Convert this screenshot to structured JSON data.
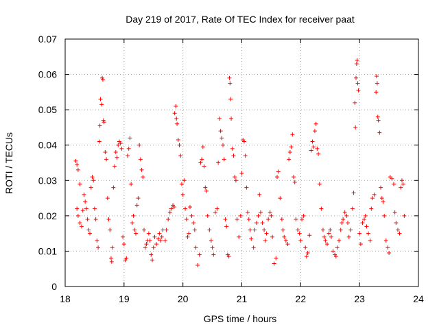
{
  "chart_data": {
    "type": "scatter",
    "title": "Day 219 of 2017, Rate Of TEC Index for receiver paat",
    "xlabel": "GPS time / hours",
    "ylabel": "ROTI / TECUs",
    "xlim": [
      18,
      24
    ],
    "ylim": [
      0,
      0.07
    ],
    "xticks": [
      "18",
      "19",
      "20",
      "21",
      "22",
      "23",
      "24"
    ],
    "yticks": [
      "0",
      "0.01",
      "0.02",
      "0.03",
      "0.04",
      "0.05",
      "0.06",
      "0.07"
    ],
    "grid": true,
    "marker": "+",
    "marker_color": "#ff0000",
    "series": [
      {
        "name": "ROTI",
        "color": "#ff0000",
        "points": [
          [
            18.18,
            0.0355
          ],
          [
            18.2,
            0.0345
          ],
          [
            18.22,
            0.033
          ],
          [
            18.25,
            0.029
          ],
          [
            18.2,
            0.022
          ],
          [
            18.22,
            0.02
          ],
          [
            18.25,
            0.018
          ],
          [
            18.28,
            0.017
          ],
          [
            18.3,
            0.0215
          ],
          [
            18.32,
            0.026
          ],
          [
            18.34,
            0.024
          ],
          [
            18.36,
            0.022
          ],
          [
            18.38,
            0.019
          ],
          [
            18.4,
            0.016
          ],
          [
            18.42,
            0.015
          ],
          [
            18.44,
            0.028
          ],
          [
            18.46,
            0.031
          ],
          [
            18.48,
            0.03
          ],
          [
            18.5,
            0.022
          ],
          [
            18.52,
            0.019
          ],
          [
            18.54,
            0.013
          ],
          [
            18.56,
            0.011
          ],
          [
            18.58,
            0.041
          ],
          [
            18.59,
            0.0455
          ],
          [
            18.6,
            0.053
          ],
          [
            18.62,
            0.0515
          ],
          [
            18.63,
            0.059
          ],
          [
            18.64,
            0.0585
          ],
          [
            18.65,
            0.047
          ],
          [
            18.66,
            0.0465
          ],
          [
            18.68,
            0.038
          ],
          [
            18.7,
            0.036
          ],
          [
            18.72,
            0.025
          ],
          [
            18.74,
            0.019
          ],
          [
            18.76,
            0.016
          ],
          [
            18.78,
            0.008
          ],
          [
            18.79,
            0.007
          ],
          [
            18.8,
            0.011
          ],
          [
            18.82,
            0.028
          ],
          [
            18.84,
            0.034
          ],
          [
            18.86,
            0.038
          ],
          [
            18.88,
            0.0365
          ],
          [
            18.9,
            0.04
          ],
          [
            18.92,
            0.041
          ],
          [
            18.94,
            0.0405
          ],
          [
            18.96,
            0.039
          ],
          [
            18.98,
            0.014
          ],
          [
            19.0,
            0.012
          ],
          [
            19.02,
            0.0075
          ],
          [
            19.04,
            0.008
          ],
          [
            19.06,
            0.037
          ],
          [
            19.08,
            0.039
          ],
          [
            19.1,
            0.042
          ],
          [
            19.12,
            0.029
          ],
          [
            19.14,
            0.018
          ],
          [
            19.16,
            0.02
          ],
          [
            19.18,
            0.016
          ],
          [
            19.2,
            0.015
          ],
          [
            19.22,
            0.023
          ],
          [
            19.24,
            0.025
          ],
          [
            19.26,
            0.04
          ],
          [
            19.28,
            0.036
          ],
          [
            19.3,
            0.033
          ],
          [
            19.32,
            0.031
          ],
          [
            19.34,
            0.016
          ],
          [
            19.36,
            0.011
          ],
          [
            19.38,
            0.012
          ],
          [
            19.4,
            0.013
          ],
          [
            19.42,
            0.015
          ],
          [
            19.44,
            0.013
          ],
          [
            19.46,
            0.009
          ],
          [
            19.48,
            0.0075
          ],
          [
            19.5,
            0.011
          ],
          [
            19.52,
            0.014
          ],
          [
            19.55,
            0.012
          ],
          [
            19.58,
            0.0135
          ],
          [
            19.6,
            0.015
          ],
          [
            19.62,
            0.013
          ],
          [
            19.64,
            0.014
          ],
          [
            19.66,
            0.016
          ],
          [
            19.7,
            0.013
          ],
          [
            19.72,
            0.016
          ],
          [
            19.75,
            0.019
          ],
          [
            19.78,
            0.021
          ],
          [
            19.8,
            0.022
          ],
          [
            19.83,
            0.023
          ],
          [
            19.85,
            0.0225
          ],
          [
            19.86,
            0.049
          ],
          [
            19.88,
            0.051
          ],
          [
            19.89,
            0.0475
          ],
          [
            19.9,
            0.046
          ],
          [
            19.92,
            0.0415
          ],
          [
            19.94,
            0.04
          ],
          [
            19.96,
            0.037
          ],
          [
            19.98,
            0.029
          ],
          [
            20.0,
            0.026
          ],
          [
            20.02,
            0.03
          ],
          [
            20.04,
            0.022
          ],
          [
            20.06,
            0.019
          ],
          [
            20.08,
            0.014
          ],
          [
            20.1,
            0.015
          ],
          [
            20.12,
            0.0225
          ],
          [
            20.15,
            0.02
          ],
          [
            20.18,
            0.018
          ],
          [
            20.2,
            0.016
          ],
          [
            20.22,
            0.011
          ],
          [
            20.25,
            0.006
          ],
          [
            20.28,
            0.009
          ],
          [
            20.3,
            0.035
          ],
          [
            20.32,
            0.036
          ],
          [
            20.34,
            0.0395
          ],
          [
            20.36,
            0.034
          ],
          [
            20.38,
            0.028
          ],
          [
            20.4,
            0.027
          ],
          [
            20.42,
            0.02
          ],
          [
            20.45,
            0.016
          ],
          [
            20.48,
            0.013
          ],
          [
            20.5,
            0.011
          ],
          [
            20.52,
            0.009
          ],
          [
            20.55,
            0.021
          ],
          [
            20.58,
            0.022
          ],
          [
            20.6,
            0.035
          ],
          [
            20.62,
            0.0475
          ],
          [
            20.64,
            0.044
          ],
          [
            20.66,
            0.042
          ],
          [
            20.68,
            0.04
          ],
          [
            20.7,
            0.036
          ],
          [
            20.72,
            0.019
          ],
          [
            20.74,
            0.017
          ],
          [
            20.76,
            0.009
          ],
          [
            20.78,
            0.0085
          ],
          [
            20.79,
            0.059
          ],
          [
            20.8,
            0.0575
          ],
          [
            20.81,
            0.053
          ],
          [
            20.82,
            0.0475
          ],
          [
            20.84,
            0.039
          ],
          [
            20.86,
            0.037
          ],
          [
            20.88,
            0.031
          ],
          [
            20.9,
            0.03
          ],
          [
            20.92,
            0.019
          ],
          [
            20.95,
            0.014
          ],
          [
            20.98,
            0.02
          ],
          [
            21.0,
            0.032
          ],
          [
            21.02,
            0.0415
          ],
          [
            21.04,
            0.041
          ],
          [
            21.06,
            0.037
          ],
          [
            21.08,
            0.028
          ],
          [
            21.1,
            0.021
          ],
          [
            21.12,
            0.019
          ],
          [
            21.14,
            0.016
          ],
          [
            21.16,
            0.0135
          ],
          [
            21.2,
            0.011
          ],
          [
            21.22,
            0.016
          ],
          [
            21.25,
            0.018
          ],
          [
            21.28,
            0.02
          ],
          [
            21.3,
            0.026
          ],
          [
            21.32,
            0.021
          ],
          [
            21.35,
            0.018
          ],
          [
            21.38,
            0.016
          ],
          [
            21.4,
            0.013
          ],
          [
            21.42,
            0.015
          ],
          [
            21.45,
            0.019
          ],
          [
            21.48,
            0.021
          ],
          [
            21.5,
            0.02
          ],
          [
            21.52,
            0.014
          ],
          [
            21.55,
            0.0065
          ],
          [
            21.58,
            0.008
          ],
          [
            21.6,
            0.031
          ],
          [
            21.62,
            0.0325
          ],
          [
            21.65,
            0.025
          ],
          [
            21.68,
            0.019
          ],
          [
            21.7,
            0.016
          ],
          [
            21.72,
            0.014
          ],
          [
            21.75,
            0.013
          ],
          [
            21.78,
            0.012
          ],
          [
            21.8,
            0.036
          ],
          [
            21.82,
            0.038
          ],
          [
            21.84,
            0.0395
          ],
          [
            21.86,
            0.043
          ],
          [
            21.88,
            0.031
          ],
          [
            21.9,
            0.0295
          ],
          [
            21.92,
            0.019
          ],
          [
            21.95,
            0.016
          ],
          [
            21.98,
            0.015
          ],
          [
            22.0,
            0.013
          ],
          [
            22.02,
            0.019
          ],
          [
            22.05,
            0.02
          ],
          [
            22.08,
            0.011
          ],
          [
            22.1,
            0.0085
          ],
          [
            22.12,
            0.0095
          ],
          [
            22.15,
            0.0145
          ],
          [
            22.18,
            0.0385
          ],
          [
            22.2,
            0.041
          ],
          [
            22.22,
            0.0395
          ],
          [
            22.24,
            0.044
          ],
          [
            22.26,
            0.046
          ],
          [
            22.28,
            0.039
          ],
          [
            22.3,
            0.0375
          ],
          [
            22.32,
            0.029
          ],
          [
            22.35,
            0.022
          ],
          [
            22.38,
            0.016
          ],
          [
            22.4,
            0.014
          ],
          [
            22.42,
            0.013
          ],
          [
            22.45,
            0.012
          ],
          [
            22.48,
            0.015
          ],
          [
            22.5,
            0.016
          ],
          [
            22.52,
            0.014
          ],
          [
            22.55,
            0.01
          ],
          [
            22.58,
            0.009
          ],
          [
            22.6,
            0.0085
          ],
          [
            22.62,
            0.011
          ],
          [
            22.65,
            0.013
          ],
          [
            22.68,
            0.016
          ],
          [
            22.7,
            0.018
          ],
          [
            22.72,
            0.019
          ],
          [
            22.75,
            0.021
          ],
          [
            22.78,
            0.02
          ],
          [
            22.8,
            0.018
          ],
          [
            22.82,
            0.014
          ],
          [
            22.85,
            0.016
          ],
          [
            22.88,
            0.022
          ],
          [
            22.9,
            0.0265
          ],
          [
            22.92,
            0.052
          ],
          [
            22.93,
            0.045
          ],
          [
            22.94,
            0.059
          ],
          [
            22.95,
            0.063
          ],
          [
            22.96,
            0.064
          ],
          [
            22.97,
            0.0575
          ],
          [
            22.98,
            0.0555
          ],
          [
            23.0,
            0.015
          ],
          [
            23.02,
            0.012
          ],
          [
            23.05,
            0.018
          ],
          [
            23.08,
            0.019
          ],
          [
            23.1,
            0.02
          ],
          [
            23.12,
            0.017
          ],
          [
            23.15,
            0.015
          ],
          [
            23.18,
            0.013
          ],
          [
            23.2,
            0.022
          ],
          [
            23.22,
            0.025
          ],
          [
            23.25,
            0.026
          ],
          [
            23.28,
            0.055
          ],
          [
            23.29,
            0.0595
          ],
          [
            23.3,
            0.0575
          ],
          [
            23.31,
            0.048
          ],
          [
            23.32,
            0.047
          ],
          [
            23.34,
            0.0435
          ],
          [
            23.36,
            0.028
          ],
          [
            23.38,
            0.025
          ],
          [
            23.4,
            0.024
          ],
          [
            23.42,
            0.02
          ],
          [
            23.45,
            0.013
          ],
          [
            23.48,
            0.011
          ],
          [
            23.5,
            0.0095
          ],
          [
            23.52,
            0.031
          ],
          [
            23.55,
            0.0305
          ],
          [
            23.58,
            0.029
          ],
          [
            23.6,
            0.021
          ],
          [
            23.62,
            0.018
          ],
          [
            23.65,
            0.016
          ],
          [
            23.68,
            0.015
          ],
          [
            23.7,
            0.028
          ],
          [
            23.72,
            0.03
          ],
          [
            23.74,
            0.029
          ],
          [
            23.76,
            0.02
          ]
        ]
      }
    ]
  }
}
